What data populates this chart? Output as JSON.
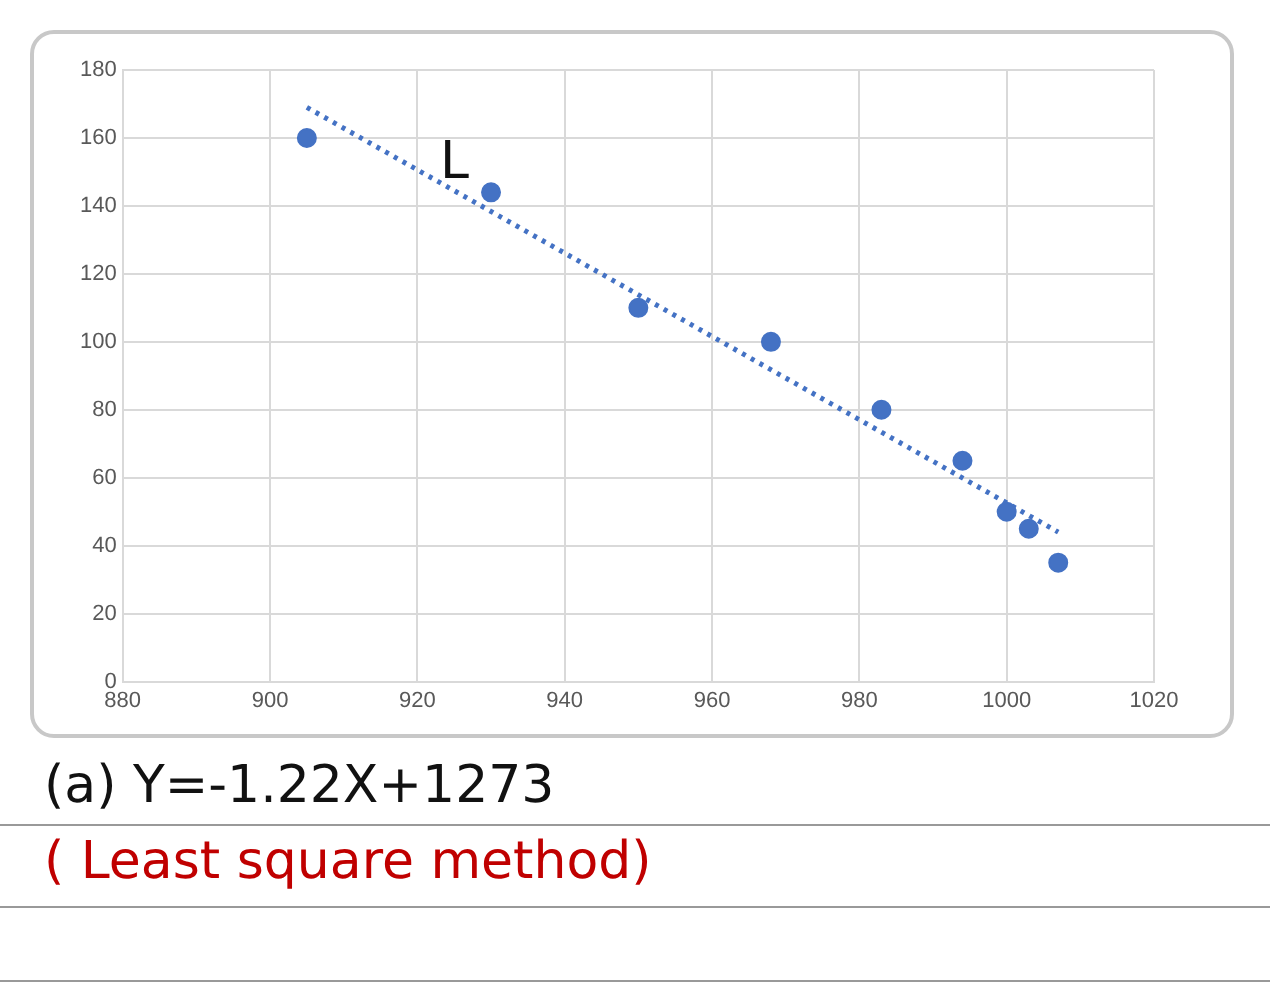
{
  "chart_data": {
    "type": "scatter",
    "xlim": [
      880,
      1020
    ],
    "xticks": [
      880,
      900,
      920,
      940,
      960,
      980,
      1000,
      1020
    ],
    "ylim": [
      0,
      180
    ],
    "yticks": [
      0,
      20,
      40,
      60,
      80,
      100,
      120,
      140,
      160,
      180
    ],
    "grid": true,
    "legend": false,
    "marker": "circle",
    "series": [
      {
        "color": "#4472c4",
        "x": [
          905,
          930,
          950,
          968,
          983,
          994,
          1000,
          1003,
          1007
        ],
        "values": [
          160,
          144,
          110,
          100,
          80,
          65,
          50,
          45,
          35
        ]
      },
      {
        "type": "line",
        "color": "#4472c4",
        "line_style": "dotted",
        "marker": "none",
        "x": [
          905,
          1007
        ],
        "values": [
          169,
          44
        ]
      }
    ],
    "annotations": [
      "L",
      "(a) Y=-1.22X+1273",
      "( Least square method)"
    ]
  }
}
